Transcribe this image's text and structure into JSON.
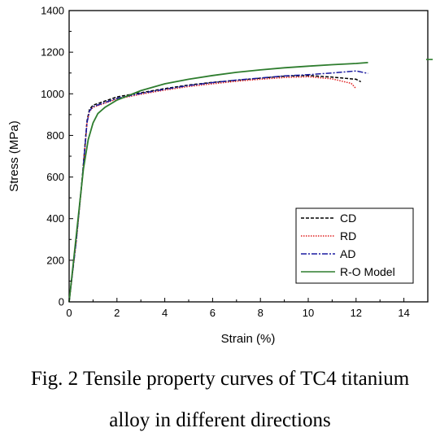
{
  "chart_data": {
    "type": "line",
    "xlabel": "Strain (%)",
    "ylabel": "Stress (MPa)",
    "xlim": [
      0,
      15
    ],
    "ylim": [
      0,
      1400
    ],
    "xticks": [
      0,
      2,
      4,
      6,
      8,
      10,
      12,
      14
    ],
    "yticks": [
      0,
      200,
      400,
      600,
      800,
      1000,
      1200,
      1400
    ],
    "grid": false,
    "legend_position": "bottom-right",
    "series": [
      {
        "name": "CD",
        "color": "#000000",
        "style": "dashed",
        "points": [
          [
            0,
            0
          ],
          [
            0.3,
            300
          ],
          [
            0.55,
            600
          ],
          [
            0.75,
            870
          ],
          [
            0.85,
            925
          ],
          [
            1.0,
            945
          ],
          [
            2,
            985
          ],
          [
            3,
            1005
          ],
          [
            4,
            1025
          ],
          [
            5,
            1042
          ],
          [
            6,
            1055
          ],
          [
            7,
            1065
          ],
          [
            8,
            1075
          ],
          [
            9,
            1085
          ],
          [
            10,
            1088
          ],
          [
            11,
            1080
          ],
          [
            12,
            1070
          ],
          [
            12.2,
            1058
          ]
        ]
      },
      {
        "name": "RD",
        "color": "#e02020",
        "style": "dotted",
        "points": [
          [
            0,
            0
          ],
          [
            0.3,
            290
          ],
          [
            0.55,
            590
          ],
          [
            0.75,
            860
          ],
          [
            0.85,
            915
          ],
          [
            1.0,
            935
          ],
          [
            2,
            975
          ],
          [
            3,
            998
          ],
          [
            4,
            1018
          ],
          [
            5,
            1035
          ],
          [
            6,
            1048
          ],
          [
            7,
            1060
          ],
          [
            8,
            1070
          ],
          [
            9,
            1078
          ],
          [
            10,
            1082
          ],
          [
            11,
            1072
          ],
          [
            11.8,
            1050
          ],
          [
            12,
            1025
          ]
        ]
      },
      {
        "name": "AD",
        "color": "#1a1aa0",
        "style": "dashdot",
        "points": [
          [
            0,
            0
          ],
          [
            0.3,
            295
          ],
          [
            0.55,
            595
          ],
          [
            0.75,
            862
          ],
          [
            0.85,
            918
          ],
          [
            1.0,
            938
          ],
          [
            2,
            978
          ],
          [
            3,
            1002
          ],
          [
            4,
            1022
          ],
          [
            5,
            1040
          ],
          [
            6,
            1054
          ],
          [
            7,
            1066
          ],
          [
            8,
            1076
          ],
          [
            9,
            1086
          ],
          [
            10,
            1092
          ],
          [
            11,
            1100
          ],
          [
            12,
            1110
          ],
          [
            12.5,
            1098
          ]
        ]
      },
      {
        "name": "R-O Model",
        "color": "#2e7d2e",
        "style": "solid",
        "points": [
          [
            0,
            0
          ],
          [
            0.3,
            320
          ],
          [
            0.6,
            640
          ],
          [
            0.8,
            780
          ],
          [
            1.0,
            860
          ],
          [
            1.2,
            905
          ],
          [
            1.5,
            935
          ],
          [
            2,
            970
          ],
          [
            3,
            1015
          ],
          [
            4,
            1048
          ],
          [
            5,
            1070
          ],
          [
            6,
            1088
          ],
          [
            7,
            1103
          ],
          [
            8,
            1115
          ],
          [
            9,
            1125
          ],
          [
            10,
            1133
          ],
          [
            11,
            1140
          ],
          [
            12,
            1146
          ],
          [
            12.5,
            1150
          ]
        ]
      }
    ],
    "extra_mark": {
      "x": 15,
      "y": 1165,
      "color": "#2e7d2e"
    }
  },
  "caption": {
    "line1": "Fig. 2 Tensile property curves of TC4 titanium",
    "line2": "alloy in different directions"
  }
}
